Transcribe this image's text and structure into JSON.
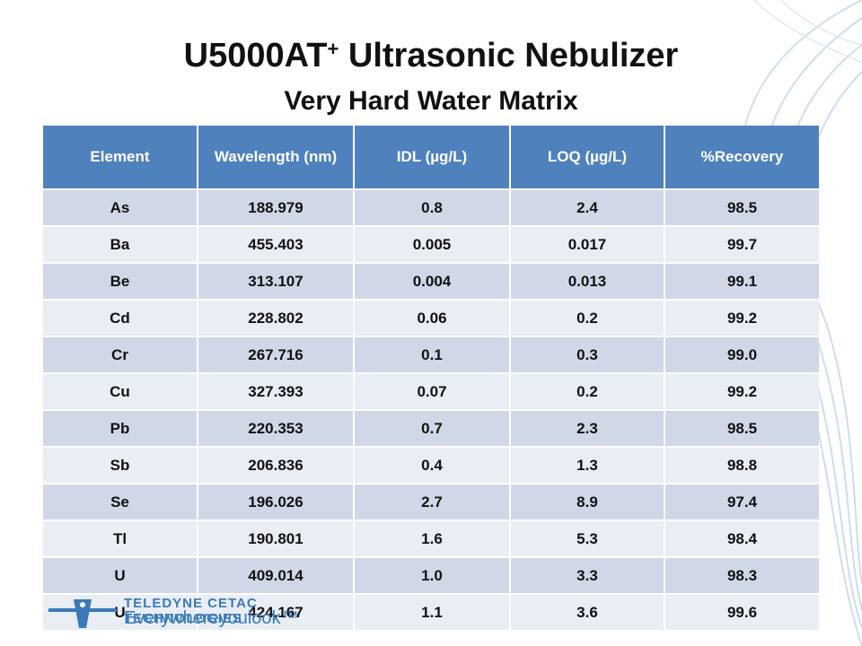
{
  "slide": {
    "title": "U5000AT",
    "title_sup": "+",
    "title_rest": " Ultrasonic Nebulizer",
    "subtitle": "Very Hard Water Matrix"
  },
  "table": {
    "headers": [
      "Element",
      "Wavelength (nm)",
      "IDL (µg/L)",
      "LOQ (µg/L)",
      "%Recovery"
    ],
    "rows": [
      [
        "As",
        "188.979",
        "0.8",
        "2.4",
        "98.5"
      ],
      [
        "Ba",
        "455.403",
        "0.005",
        "0.017",
        "99.7"
      ],
      [
        "Be",
        "313.107",
        "0.004",
        "0.013",
        "99.1"
      ],
      [
        "Cd",
        "228.802",
        "0.06",
        "0.2",
        "99.2"
      ],
      [
        "Cr",
        "267.716",
        "0.1",
        "0.3",
        "99.0"
      ],
      [
        "Cu",
        "327.393",
        "0.07",
        "0.2",
        "99.2"
      ],
      [
        "Pb",
        "220.353",
        "0.7",
        "2.3",
        "98.5"
      ],
      [
        "Sb",
        "206.836",
        "0.4",
        "1.3",
        "98.8"
      ],
      [
        "Se",
        "196.026",
        "2.7",
        "8.9",
        "97.4"
      ],
      [
        "Tl",
        "190.801",
        "1.6",
        "5.3",
        "98.4"
      ],
      [
        "U",
        "409.014",
        "1.0",
        "3.3",
        "98.3"
      ],
      [
        "U",
        "424.167",
        "1.1",
        "3.6",
        "99.6"
      ]
    ]
  },
  "footer": {
    "brand_line1": "TELEDYNE CETAC TECHNOLOGIES",
    "brand_line2": "Everywhereyoulook",
    "trademark": "™"
  },
  "colors": {
    "header_bg": "#4f81bd",
    "row_odd": "#d0d8e8",
    "row_even": "#e9edf4",
    "brand": "#3a7ab8"
  },
  "icons": {
    "decoration": "blue-curved-lines-decoration",
    "logo": "teledyne-logo-mark"
  }
}
